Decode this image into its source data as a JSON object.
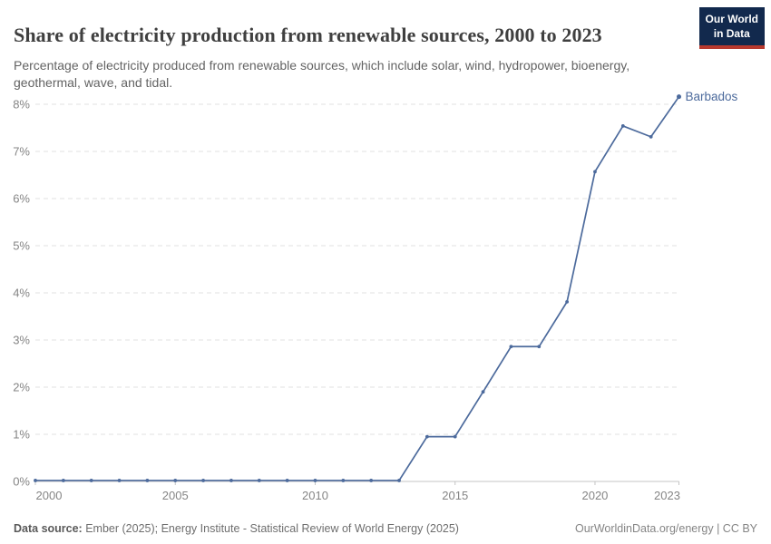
{
  "header": {
    "title": "Share of electricity production from renewable sources, 2000 to 2023",
    "subtitle": "Percentage of electricity produced from renewable sources, which include solar, wind, hydropower, bioenergy, geothermal, wave, and tidal.",
    "logo": {
      "line1": "Our World",
      "line2": "in Data"
    }
  },
  "chart_data": {
    "type": "line",
    "title": "Share of electricity production from renewable sources, 2000 to 2023",
    "x": [
      2000,
      2001,
      2002,
      2003,
      2004,
      2005,
      2006,
      2007,
      2008,
      2009,
      2010,
      2011,
      2012,
      2013,
      2014,
      2015,
      2016,
      2017,
      2018,
      2019,
      2020,
      2021,
      2022,
      2023
    ],
    "series": [
      {
        "name": "Barbados",
        "color": "#4C6A9C",
        "values": [
          0.02,
          0.02,
          0.02,
          0.02,
          0.02,
          0.02,
          0.02,
          0.02,
          0.02,
          0.02,
          0.02,
          0.02,
          0.02,
          0.02,
          0.95,
          0.95,
          1.9,
          2.86,
          2.86,
          3.81,
          6.57,
          7.54,
          7.31,
          8.16
        ]
      }
    ],
    "x_ticks": [
      2000,
      2005,
      2010,
      2015,
      2020,
      2023
    ],
    "y_ticks": [
      0,
      1,
      2,
      3,
      4,
      5,
      6,
      7,
      8
    ],
    "y_unit": "%",
    "xlim": [
      2000,
      2023
    ],
    "ylim": [
      0,
      8.5
    ],
    "grid": "horizontal-dashed",
    "legend": "label-at-line-end"
  },
  "footer": {
    "source_label": "Data source:",
    "source_text": " Ember (2025); Energy Institute - Statistical Review of World Energy (2025)",
    "credit": "OurWorldinData.org/energy | CC BY"
  },
  "colors": {
    "line": "#4C6A9C",
    "grid": "#e0e0e0",
    "axis": "#c4c4c4",
    "tick_label": "#858585",
    "title": "#3f3f3f",
    "subtitle": "#636363",
    "logo_bg": "#12294d",
    "logo_stripe": "#b8392e"
  }
}
